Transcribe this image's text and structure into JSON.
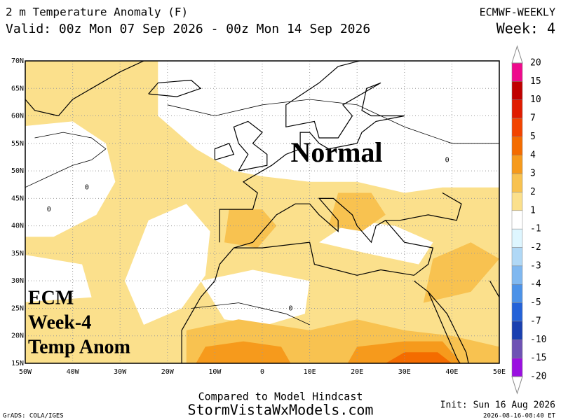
{
  "header": {
    "title": "2 m Temperature Anomaly (F)",
    "valid": "Valid: 00z Mon 07 Sep 2026 - 00z Mon 14 Sep 2026",
    "model": "ECMWF-WEEKLY",
    "week": "Week: 4"
  },
  "map": {
    "lon_range": [
      -50,
      50
    ],
    "lat_range": [
      15,
      70
    ],
    "lon_ticks": [
      {
        "value": -50,
        "label": "50W"
      },
      {
        "value": -40,
        "label": "40W"
      },
      {
        "value": -30,
        "label": "30W"
      },
      {
        "value": -20,
        "label": "20W"
      },
      {
        "value": -10,
        "label": "10W"
      },
      0,
      {
        "value": 10,
        "label": "10E"
      },
      {
        "value": 20,
        "label": "20E"
      },
      {
        "value": 30,
        "label": "30E"
      },
      {
        "value": 40,
        "label": "40E"
      },
      {
        "value": 50,
        "label": "50E"
      }
    ],
    "lat_ticks": [
      {
        "value": 70,
        "label": "70N"
      },
      {
        "value": 65,
        "label": "65N"
      },
      {
        "value": 60,
        "label": "60N"
      },
      {
        "value": 55,
        "label": "55N"
      },
      {
        "value": 50,
        "label": "50N"
      },
      {
        "value": 45,
        "label": "45N"
      },
      {
        "value": 40,
        "label": "40N"
      },
      {
        "value": 35,
        "label": "35N"
      },
      {
        "value": 30,
        "label": "30N"
      },
      {
        "value": 25,
        "label": "25N"
      },
      {
        "value": 20,
        "label": "20N"
      },
      {
        "value": 15,
        "label": "15N"
      }
    ],
    "contour_labels": [
      "0",
      "0",
      "0",
      "0"
    ],
    "annotation": "Normal"
  },
  "legend": {
    "levels": [
      20,
      15,
      10,
      7,
      5,
      4,
      3,
      2,
      1,
      -1,
      -2,
      -3,
      -4,
      -5,
      -7,
      -10,
      -15,
      -20
    ],
    "colors": [
      "#ee0a8c",
      "#c00000",
      "#e01c00",
      "#f24400",
      "#f46c00",
      "#f69a1c",
      "#f8c250",
      "#fbe08c",
      "#ffffff",
      "#def6ff",
      "#b0d8f6",
      "#80b8f0",
      "#4c92e8",
      "#2462d8",
      "#1a40b0",
      "#6e52b4",
      "#9a10e0"
    ]
  },
  "overlay": [
    "ECM",
    "Week-4",
    "Temp Anom"
  ],
  "footer": {
    "note": "Compared to Model Hindcast",
    "site": "StormVistaWxModels.com",
    "init": "Init: Sun 16 Aug 2026",
    "stamp": "2026-08-16-08:40 ET",
    "credit": "GrADS: COLA/IGES"
  }
}
